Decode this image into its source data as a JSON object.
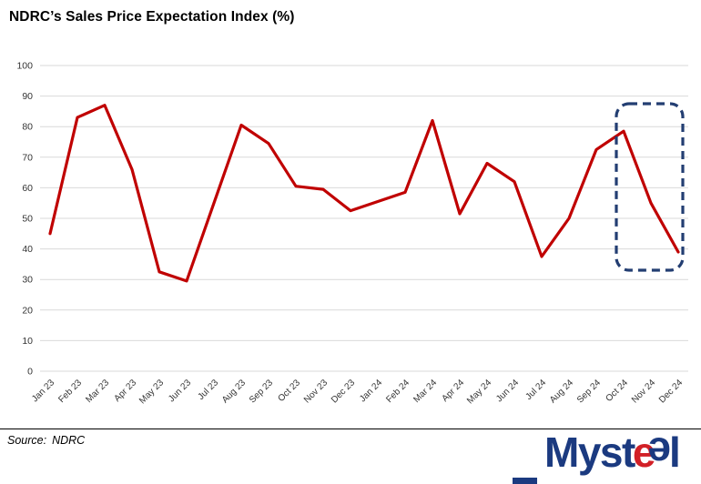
{
  "title": "NDRC’s Sales Price Expectation Index (%)",
  "source": {
    "label": "Source:",
    "value": "NDRC"
  },
  "logo": {
    "m": "Myst",
    "e1": "e",
    "e2": "e",
    "l": "l"
  },
  "colors": {
    "line": "#C00000",
    "grid": "#D9D9D9",
    "tick_text": "#333333",
    "annotation": "#233E72",
    "logo_blue": "#1B3A80",
    "logo_red": "#D22027"
  },
  "chart_data": {
    "type": "line",
    "title": "NDRC’s Sales Price Expectation Index (%)",
    "categories": [
      "Jan 23",
      "Feb 23",
      "Mar 23",
      "Apr 23",
      "May 23",
      "Jun 23",
      "Jul 23",
      "Aug 23",
      "Sep 23",
      "Oct 23",
      "Nov 23",
      "Dec 23",
      "Jan 24",
      "Feb 24",
      "Mar 24",
      "Apr 24",
      "May 24",
      "Jun 24",
      "Jul 24",
      "Aug 24",
      "Sep 24",
      "Oct 24",
      "Nov 24",
      "Dec 24"
    ],
    "series": [
      {
        "name": "Sales Price Expectation Index (%)",
        "color": "#C00000",
        "values": [
          45,
          83,
          87,
          66,
          32.5,
          29.5,
          55,
          80.5,
          74.5,
          60.5,
          59.5,
          52.5,
          55.5,
          58.5,
          82,
          51.5,
          68,
          62,
          37.5,
          50,
          72.5,
          78.5,
          55,
          39
        ]
      }
    ],
    "xlabel": "",
    "ylabel": "",
    "ylim": [
      0,
      100
    ],
    "yticks": [
      0,
      10,
      20,
      30,
      40,
      50,
      60,
      70,
      80,
      90,
      100
    ],
    "grid": true,
    "legend": "none",
    "annotation_box": {
      "from": "Oct 24",
      "to": "Dec 24",
      "color": "#233E72",
      "style": "dashed rounded rectangle"
    }
  }
}
